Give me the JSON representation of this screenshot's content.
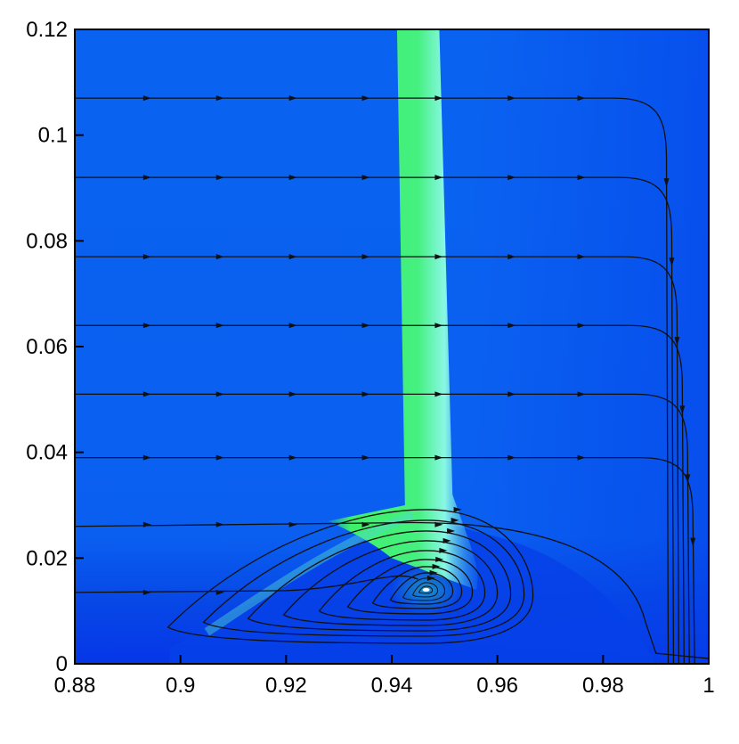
{
  "chart_data": {
    "type": "contour",
    "title": "",
    "xlabel": "",
    "ylabel": "",
    "xlim": [
      0.88,
      1.0
    ],
    "ylim": [
      0,
      0.12
    ],
    "x_ticks": [
      0.88,
      0.9,
      0.92,
      0.94,
      0.96,
      0.98,
      1.0
    ],
    "x_tick_labels": [
      "0.88",
      "0.9",
      "0.92",
      "0.94",
      "0.96",
      "0.98",
      "1"
    ],
    "y_ticks": [
      0,
      0.02,
      0.04,
      0.06,
      0.08,
      0.1,
      0.12
    ],
    "y_tick_labels": [
      "0",
      "0.02",
      "0.04",
      "0.06",
      "0.08",
      "0.1",
      "0.12"
    ],
    "grid": false,
    "legend": "none",
    "colors": {
      "background_field": "#0a63f0",
      "dark_field": "#0636e8",
      "band_center": "#3ff06a",
      "band_edge": "#7ff0e0",
      "streamline": "#111111",
      "axes": "#000000"
    },
    "features": {
      "green_band": {
        "x_center_top": 0.9445,
        "x_center_base": 0.946,
        "y_base": 0.028,
        "half_width": 0.0035
      },
      "vortex_center": [
        0.9465,
        0.014
      ]
    },
    "streamlines_outer": [
      {
        "y_start": 0.107,
        "y_turn_x": 0.992
      },
      {
        "y_start": 0.092,
        "y_turn_x": 0.993
      },
      {
        "y_start": 0.077,
        "y_turn_x": 0.994
      },
      {
        "y_start": 0.064,
        "y_turn_x": 0.995
      },
      {
        "y_start": 0.051,
        "y_turn_x": 0.996
      },
      {
        "y_start": 0.039,
        "y_turn_x": 0.997
      }
    ],
    "streamlines_lower": [
      {
        "y_start": 0.026
      },
      {
        "y_start": 0.0135
      }
    ]
  }
}
